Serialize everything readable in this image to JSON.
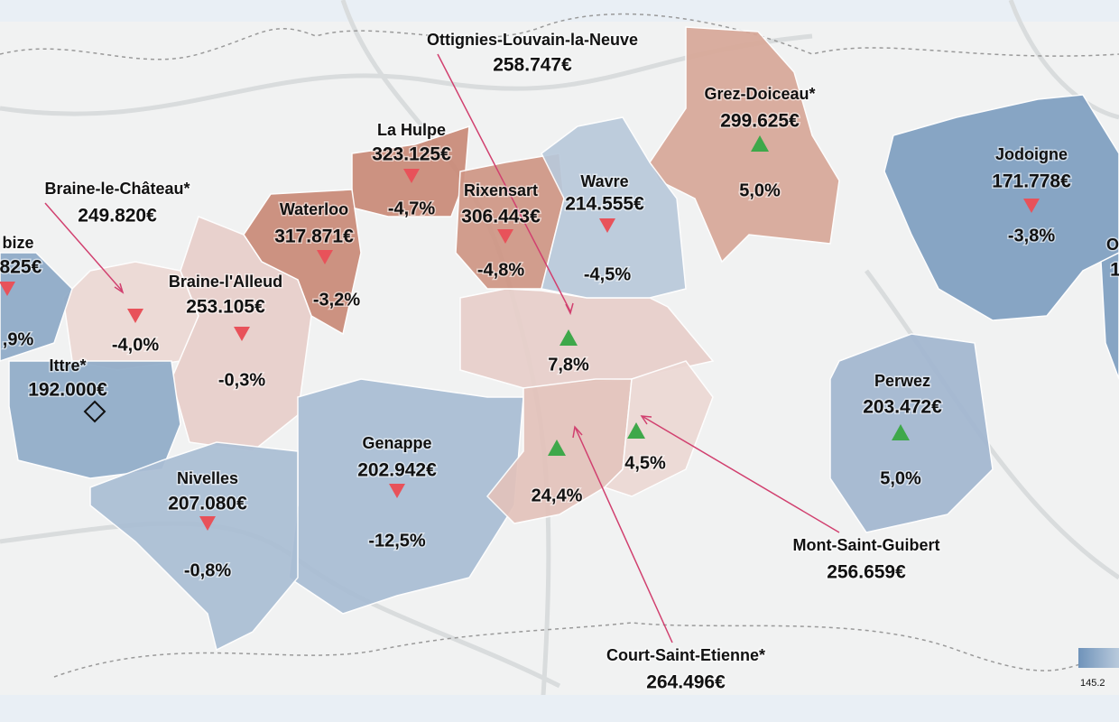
{
  "map": {
    "regions": [
      {
        "name": "Ottignies-Louvain-la-Neuve",
        "price": "258.747€",
        "change": "7,8%"
      },
      {
        "name": "Grez-Doiceau*",
        "price": "299.625€",
        "change": "5,0%"
      },
      {
        "name": "Jodoigne",
        "price": "171.778€",
        "change": "-3,8%"
      },
      {
        "name": "La Hulpe",
        "price": "323.125€",
        "change": "-4,7%"
      },
      {
        "name": "Braine-le-Château*",
        "price": "249.820€",
        "change": "-4,0%"
      },
      {
        "name": "Waterloo",
        "price": "317.871€",
        "change": "-3,2%"
      },
      {
        "name": "Rixensart",
        "price": "306.443€",
        "change": "-4,8%"
      },
      {
        "name": "Wavre",
        "price": "214.555€",
        "change": "-4,5%"
      },
      {
        "name": "bize",
        "price": ".825€",
        "change": ",9%"
      },
      {
        "name": "Braine-l'Alleud",
        "price": "253.105€",
        "change": "-0,3%"
      },
      {
        "name": "Ittre*",
        "price": "192.000€"
      },
      {
        "name": "Genappe",
        "price": "202.942€",
        "change": "-12,5%"
      },
      {
        "name": "Nivelles",
        "price": "207.080€",
        "change": "-0,8%"
      },
      {
        "name": "Perwez",
        "price": "203.472€",
        "change": "5,0%"
      },
      {
        "name": "Court-Saint-Etienne*",
        "price": "264.496€",
        "change": "24,4%"
      },
      {
        "name": "Mont-Saint-Guibert",
        "price": "256.659€",
        "change": "4,5%"
      },
      {
        "name": "O",
        "price": "1"
      }
    ],
    "legend": {
      "label": "145.2"
    }
  }
}
